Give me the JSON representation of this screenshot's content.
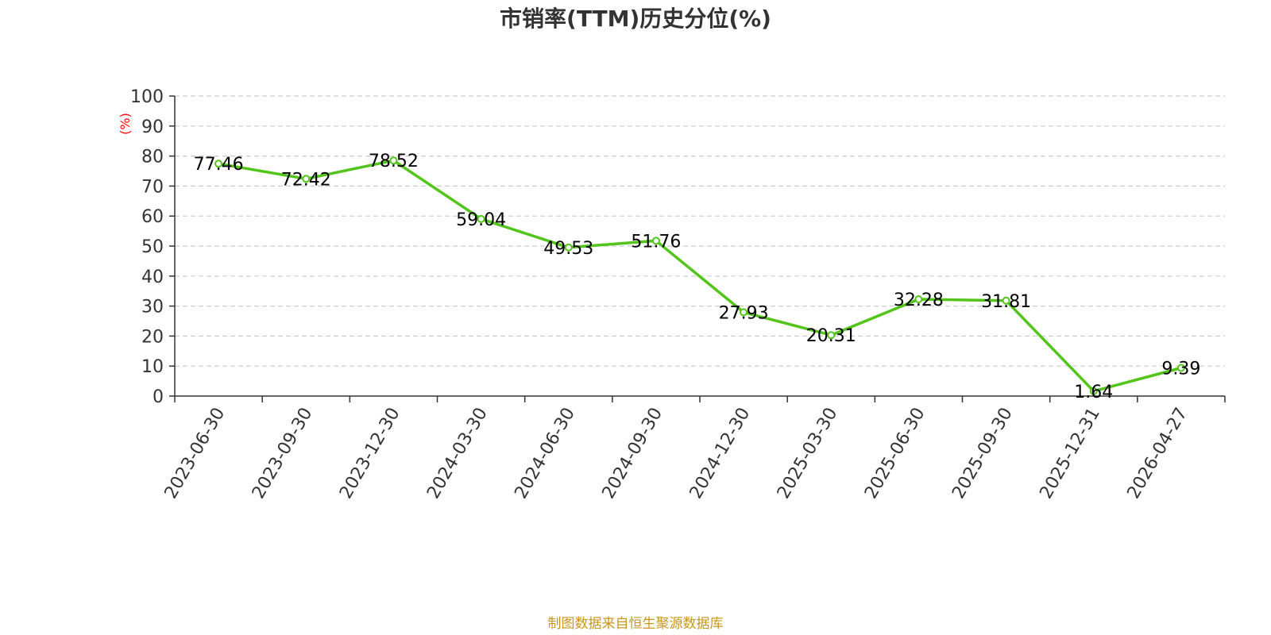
{
  "colors": {
    "line": "#52c41a",
    "axis": "#333333",
    "grid": "#cccccc",
    "ylabel": "#ff0000",
    "source": "#c8961e"
  },
  "footer": {
    "source_text": "制图数据来自恒生聚源数据库"
  },
  "chart_data": {
    "type": "line",
    "title": "市销率(TTM)历史分位(%)",
    "ylabel": "(%)",
    "xlabel": "",
    "ylim": [
      0,
      100
    ],
    "yticks": [
      0,
      10,
      20,
      30,
      40,
      50,
      60,
      70,
      80,
      90,
      100
    ],
    "grid": true,
    "categories": [
      "2023-06-30",
      "2023-09-30",
      "2023-12-30",
      "2024-03-30",
      "2024-06-30",
      "2024-09-30",
      "2024-12-30",
      "2025-03-30",
      "2025-06-30",
      "2025-09-30",
      "2025-12-31",
      "2026-04-27"
    ],
    "values": [
      77.46,
      72.42,
      78.52,
      59.04,
      49.53,
      51.76,
      27.93,
      20.31,
      32.28,
      31.81,
      1.64,
      9.39
    ],
    "value_labels": [
      "77.46",
      "72.42",
      "78.52",
      "59.04",
      "49.53",
      "51.76",
      "27.93",
      "20.31",
      "32.28",
      "31.81",
      "1.64",
      "9.39"
    ]
  }
}
